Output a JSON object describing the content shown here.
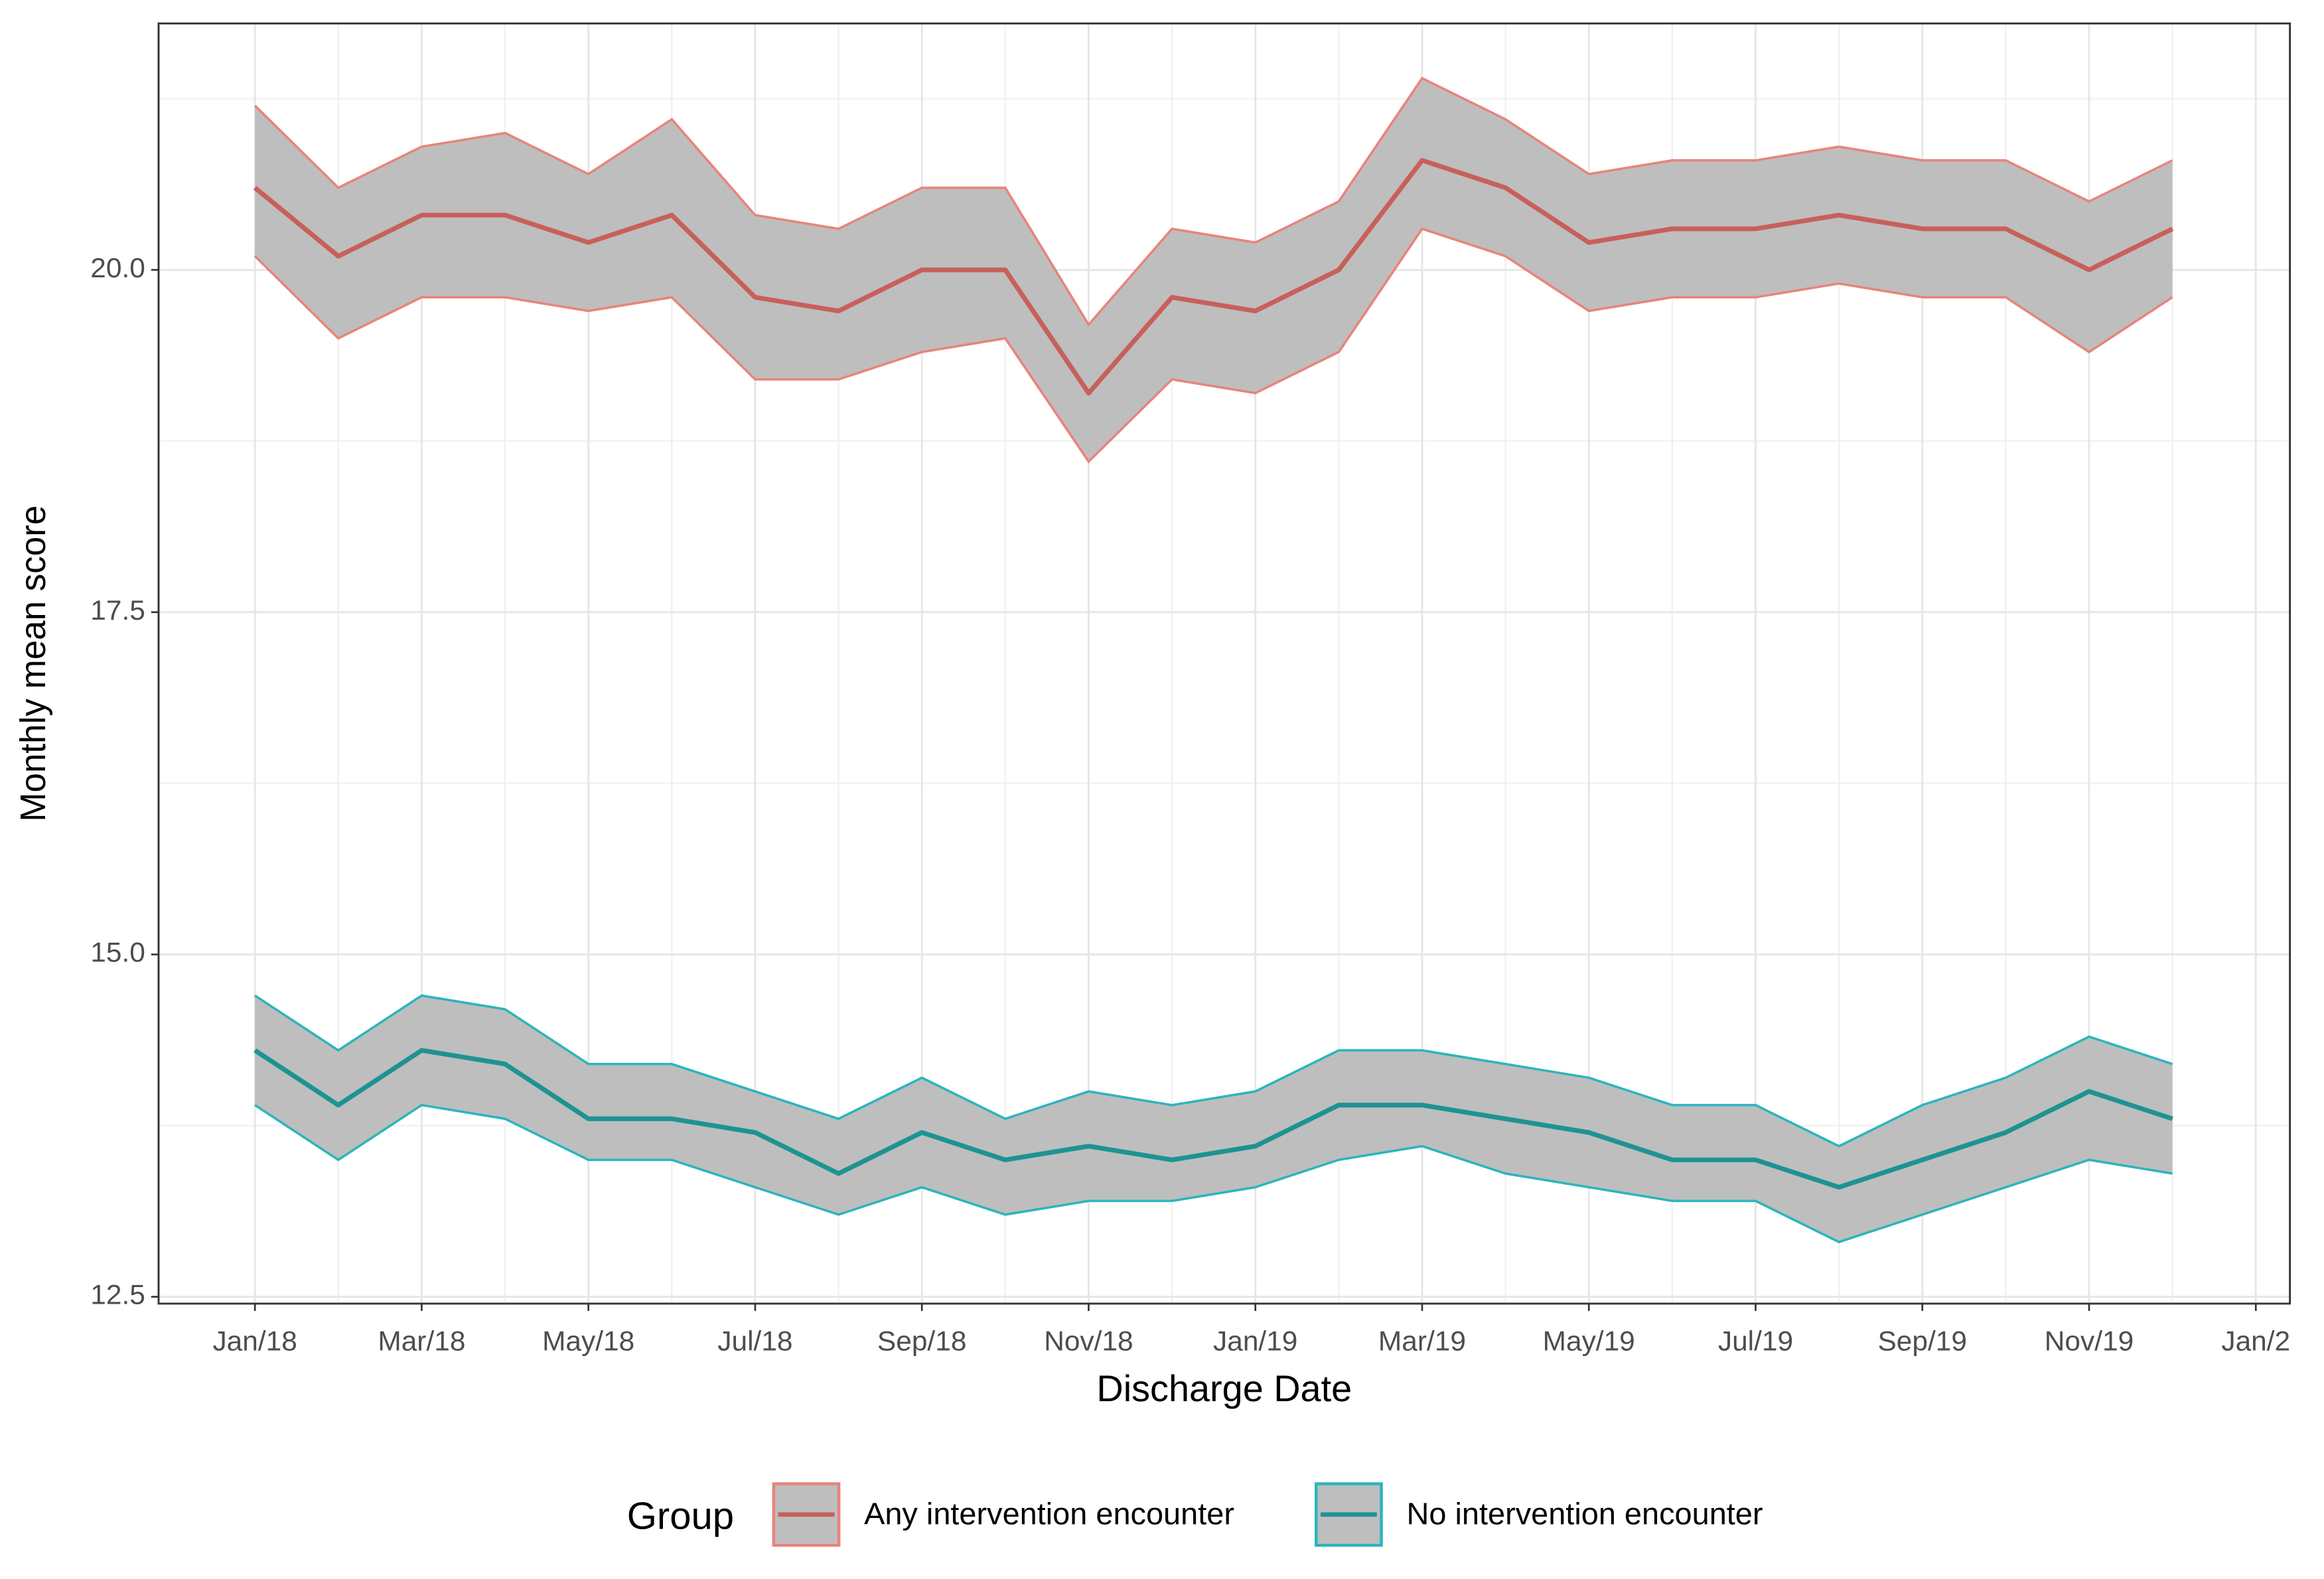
{
  "chart_data": {
    "type": "line",
    "x_label": "Discharge Date",
    "y_label": "Monthly mean score",
    "x": [
      "2018-01",
      "2018-02",
      "2018-03",
      "2018-04",
      "2018-05",
      "2018-06",
      "2018-07",
      "2018-08",
      "2018-09",
      "2018-10",
      "2018-11",
      "2018-12",
      "2019-01",
      "2019-02",
      "2019-03",
      "2019-04",
      "2019-05",
      "2019-06",
      "2019-07",
      "2019-08",
      "2019-09",
      "2019-10",
      "2019-11",
      "2019-12"
    ],
    "xlim": [
      "2017-12",
      "2020-01"
    ],
    "xticks": [
      {
        "value": "2018-01",
        "label": "Jan/18"
      },
      {
        "value": "2018-03",
        "label": "Mar/18"
      },
      {
        "value": "2018-05",
        "label": "May/18"
      },
      {
        "value": "2018-07",
        "label": "Jul/18"
      },
      {
        "value": "2018-09",
        "label": "Sep/18"
      },
      {
        "value": "2018-11",
        "label": "Nov/18"
      },
      {
        "value": "2019-01",
        "label": "Jan/19"
      },
      {
        "value": "2019-03",
        "label": "Mar/19"
      },
      {
        "value": "2019-05",
        "label": "May/19"
      },
      {
        "value": "2019-07",
        "label": "Jul/19"
      },
      {
        "value": "2019-09",
        "label": "Sep/19"
      },
      {
        "value": "2019-11",
        "label": "Nov/19"
      },
      {
        "value": "2020-01",
        "label": "Jan/2"
      }
    ],
    "ylim": [
      12.45,
      21.8
    ],
    "yticks": [
      12.5,
      {
        "value": 15,
        "label": "15.0"
      },
      17.5,
      {
        "value": 20,
        "label": "20.0"
      }
    ],
    "grid": true,
    "ribbon_color": "#bebebe",
    "legend_title": "Group",
    "legend_position": "bottom",
    "series": [
      {
        "name": "Any intervention encounter",
        "color": "#c8605a",
        "band_color": "#e8847c",
        "values": [
          20.6,
          20.1,
          20.4,
          20.4,
          20.2,
          20.4,
          19.8,
          19.7,
          20.0,
          20.0,
          19.1,
          19.8,
          19.7,
          20.0,
          20.8,
          20.6,
          20.2,
          20.3,
          20.3,
          20.4,
          20.3,
          20.3,
          20.0,
          20.3
        ],
        "upper": [
          21.2,
          20.6,
          20.9,
          21.0,
          20.7,
          21.1,
          20.4,
          20.3,
          20.6,
          20.6,
          19.6,
          20.3,
          20.2,
          20.5,
          21.4,
          21.1,
          20.7,
          20.8,
          20.8,
          20.9,
          20.8,
          20.8,
          20.5,
          20.8
        ],
        "lower": [
          20.1,
          19.5,
          19.8,
          19.8,
          19.7,
          19.8,
          19.2,
          19.2,
          19.4,
          19.5,
          18.6,
          19.2,
          19.1,
          19.4,
          20.3,
          20.1,
          19.7,
          19.8,
          19.8,
          19.9,
          19.8,
          19.8,
          19.4,
          19.8
        ]
      },
      {
        "name": "No intervention encounter",
        "color": "#1d9393",
        "band_color": "#2bb5bd",
        "values": [
          14.3,
          13.9,
          14.3,
          14.2,
          13.8,
          13.8,
          13.7,
          13.4,
          13.7,
          13.5,
          13.6,
          13.5,
          13.6,
          13.9,
          13.9,
          13.8,
          13.7,
          13.5,
          13.5,
          13.3,
          13.5,
          13.7,
          14.0,
          13.8
        ],
        "upper": [
          14.7,
          14.3,
          14.7,
          14.6,
          14.2,
          14.2,
          14.0,
          13.8,
          14.1,
          13.8,
          14.0,
          13.9,
          14.0,
          14.3,
          14.3,
          14.2,
          14.1,
          13.9,
          13.9,
          13.6,
          13.9,
          14.1,
          14.4,
          14.2
        ],
        "lower": [
          13.9,
          13.5,
          13.9,
          13.8,
          13.5,
          13.5,
          13.3,
          13.1,
          13.3,
          13.1,
          13.2,
          13.2,
          13.3,
          13.5,
          13.6,
          13.4,
          13.3,
          13.2,
          13.2,
          12.9,
          13.1,
          13.3,
          13.5,
          13.4
        ]
      }
    ]
  }
}
